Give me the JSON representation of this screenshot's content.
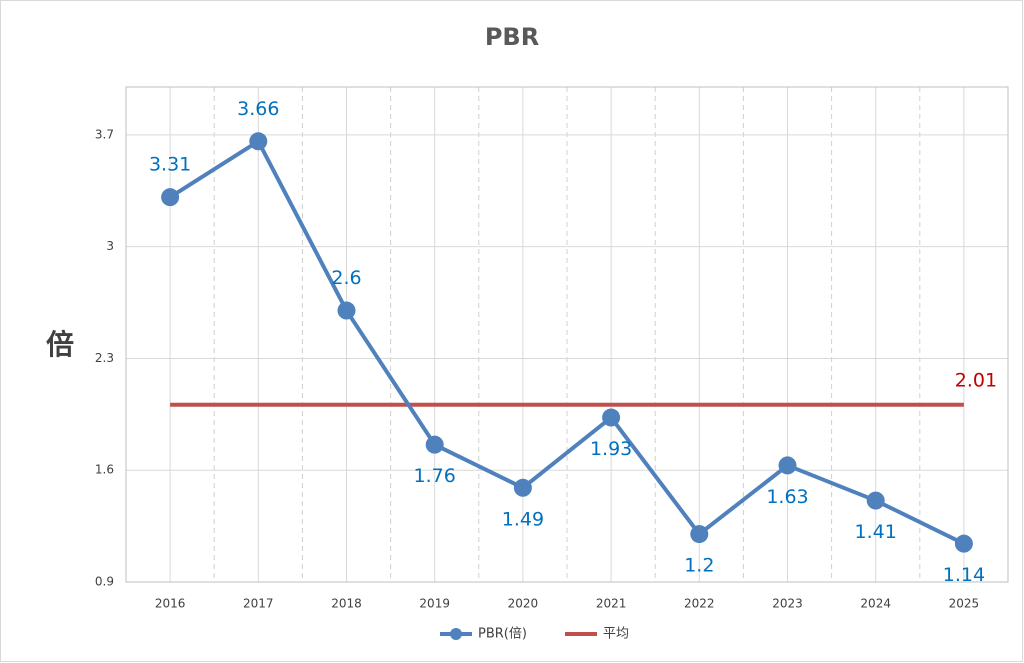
{
  "chart_data": {
    "type": "line",
    "title": "PBR",
    "y_label": "倍",
    "categories": [
      "2016",
      "2017",
      "2018",
      "2019",
      "2020",
      "2021",
      "2022",
      "2023",
      "2024",
      "2025"
    ],
    "series": [
      {
        "name": "PBR(倍)",
        "color": "#4f81bd",
        "values": [
          3.31,
          3.66,
          2.6,
          1.76,
          1.49,
          1.93,
          1.2,
          1.63,
          1.41,
          1.14
        ]
      },
      {
        "name": "平均",
        "color": "#c0504d",
        "values": [
          2.01,
          2.01,
          2.01,
          2.01,
          2.01,
          2.01,
          2.01,
          2.01,
          2.01,
          2.01
        ]
      }
    ],
    "ylim": [
      0.9,
      4.0
    ],
    "yticks": [
      0.9,
      1.6,
      2.3,
      3,
      3.7
    ],
    "grid": true,
    "legend": "bottom"
  }
}
